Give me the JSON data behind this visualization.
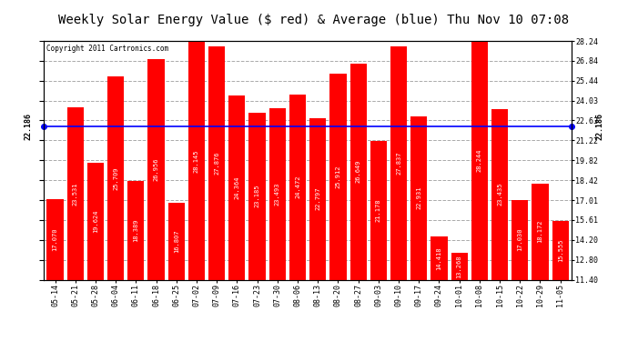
{
  "title": "Weekly Solar Energy Value ($ red) & Average (blue) Thu Nov 10 07:08",
  "copyright": "Copyright 2011 Cartronics.com",
  "categories": [
    "05-14",
    "05-21",
    "05-28",
    "06-04",
    "06-11",
    "06-18",
    "06-25",
    "07-02",
    "07-09",
    "07-16",
    "07-23",
    "07-30",
    "08-06",
    "08-13",
    "08-20",
    "08-27",
    "09-03",
    "09-10",
    "09-17",
    "09-24",
    "10-01",
    "10-08",
    "10-15",
    "10-22",
    "10-29",
    "11-05"
  ],
  "values": [
    17.07,
    23.531,
    19.624,
    25.709,
    18.389,
    26.956,
    16.807,
    28.145,
    27.876,
    24.364,
    23.185,
    23.493,
    24.472,
    22.797,
    25.912,
    26.649,
    21.178,
    27.837,
    22.931,
    14.418,
    13.268,
    28.244,
    23.435,
    17.03,
    18.172,
    15.555
  ],
  "average": 22.186,
  "bar_color": "#ff0000",
  "avg_line_color": "#0000ff",
  "background_color": "#ffffff",
  "plot_bg_color": "#ffffff",
  "ylabel_right": [
    "28.24",
    "26.84",
    "25.44",
    "24.03",
    "22.63",
    "21.22",
    "19.82",
    "18.42",
    "17.01",
    "15.61",
    "14.20",
    "12.80",
    "11.40"
  ],
  "ytick_values": [
    28.24,
    26.84,
    25.44,
    24.03,
    22.63,
    21.22,
    19.82,
    18.42,
    17.01,
    15.61,
    14.2,
    12.8,
    11.4
  ],
  "ymin": 11.4,
  "ymax": 28.24,
  "avg_label": "22.186",
  "title_fontsize": 10,
  "tick_fontsize": 6.0,
  "value_fontsize": 5.0,
  "copyright_fontsize": 5.5
}
